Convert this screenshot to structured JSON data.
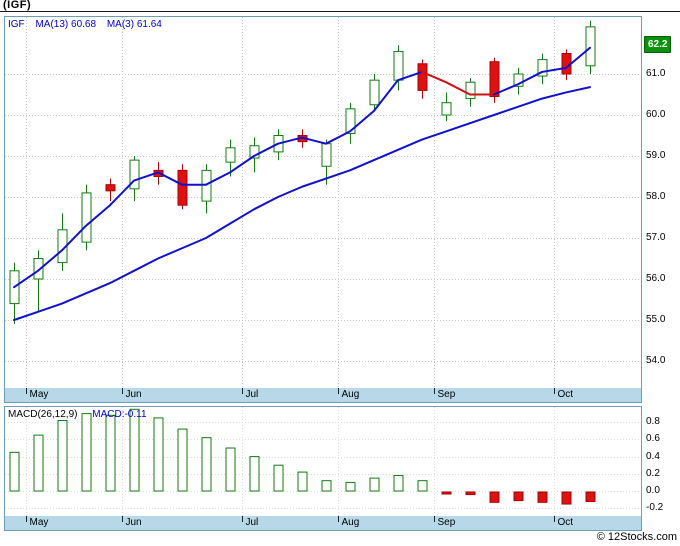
{
  "title": "(IGF)",
  "footer": {
    "copyright": "© 12Stocks.com"
  },
  "chart_data": {
    "type": "candlestick",
    "title": "(IGF)",
    "legend_position": "top-left",
    "grid": "dotted",
    "months": [
      {
        "label": "May",
        "candle_index": 1
      },
      {
        "label": "Jun",
        "candle_index": 5
      },
      {
        "label": "Jul",
        "candle_index": 10
      },
      {
        "label": "Aug",
        "candle_index": 14
      },
      {
        "label": "Sep",
        "candle_index": 18
      },
      {
        "label": "Oct",
        "candle_index": 23
      }
    ],
    "panels": [
      {
        "type": "candlestick",
        "ticker": "IGF",
        "indicators": [
          {
            "label": "MA(13)",
            "value": "60.68"
          },
          {
            "label": "MA(3)",
            "value": "61.64"
          }
        ],
        "last_price": "62.2",
        "ylim": [
          54.0,
          62.5
        ],
        "y_ticks": [
          "61.0",
          "60.0",
          "59.0",
          "58.0",
          "57.0",
          "56.0",
          "55.0",
          "54.0"
        ],
        "candles_ohlc": [
          [
            55.4,
            56.4,
            54.9,
            56.2
          ],
          [
            56.0,
            56.7,
            55.2,
            56.5
          ],
          [
            56.4,
            57.6,
            56.2,
            57.2
          ],
          [
            56.9,
            58.3,
            56.7,
            58.1
          ],
          [
            58.3,
            58.45,
            57.9,
            58.15
          ],
          [
            58.2,
            59.0,
            57.9,
            58.9
          ],
          [
            58.65,
            58.85,
            58.3,
            58.5
          ],
          [
            58.65,
            58.8,
            57.7,
            57.8
          ],
          [
            57.9,
            58.8,
            57.6,
            58.65
          ],
          [
            58.85,
            59.4,
            58.5,
            59.2
          ],
          [
            58.95,
            59.45,
            58.6,
            59.25
          ],
          [
            59.1,
            59.65,
            58.9,
            59.5
          ],
          [
            59.5,
            59.65,
            59.2,
            59.35
          ],
          [
            58.75,
            59.4,
            58.3,
            59.3
          ],
          [
            59.55,
            60.3,
            59.3,
            60.15
          ],
          [
            60.25,
            61.0,
            60.1,
            60.85
          ],
          [
            60.85,
            61.7,
            60.6,
            61.55
          ],
          [
            61.25,
            61.35,
            60.4,
            60.6
          ],
          [
            60.0,
            60.55,
            59.85,
            60.3
          ],
          [
            60.4,
            60.9,
            60.2,
            60.8
          ],
          [
            61.3,
            61.4,
            60.3,
            60.45
          ],
          [
            60.7,
            61.15,
            60.5,
            61.0
          ],
          [
            60.95,
            61.5,
            60.75,
            61.35
          ],
          [
            61.5,
            61.6,
            60.85,
            61.0
          ],
          [
            61.2,
            62.3,
            61.0,
            62.15
          ]
        ],
        "ma13": [
          55.0,
          55.2,
          55.4,
          55.65,
          55.9,
          56.2,
          56.5,
          56.75,
          57.0,
          57.35,
          57.7,
          58.0,
          58.25,
          58.45,
          58.65,
          58.9,
          59.15,
          59.4,
          59.6,
          59.8,
          60.0,
          60.2,
          60.4,
          60.55,
          60.68
        ],
        "ma3": [
          55.8,
          56.2,
          56.7,
          57.3,
          57.8,
          58.4,
          58.6,
          58.3,
          58.3,
          58.6,
          59.0,
          59.3,
          59.45,
          59.3,
          59.6,
          60.1,
          60.85,
          61.05,
          60.8,
          60.5,
          60.5,
          60.75,
          61.05,
          61.15,
          61.64
        ],
        "ma3_red_segment": [
          17,
          20
        ]
      },
      {
        "type": "bar",
        "label": "MACD(26,12,9)",
        "value_label": "MACD:-0.11",
        "ylim": [
          -0.28,
          1.0
        ],
        "y_ticks": [
          "0.8",
          "0.6",
          "0.4",
          "0.2",
          "0.0",
          "-0.2"
        ],
        "values": [
          0.45,
          0.65,
          0.82,
          0.9,
          0.88,
          0.95,
          0.85,
          0.72,
          0.62,
          0.5,
          0.4,
          0.3,
          0.22,
          0.12,
          0.1,
          0.15,
          0.18,
          0.12,
          -0.02,
          -0.03,
          -0.12,
          -0.1,
          -0.12,
          -0.14,
          -0.11
        ]
      }
    ],
    "colors": {
      "up": "#117a11",
      "down": "#dd1111",
      "down_border": "#aa0000",
      "ma": "#1111cc",
      "ma_alert": "#cc1111",
      "grid": "#c8c8c8",
      "grid_light": "#dddddd",
      "frame": "#6f9cb5",
      "axis_band": "#b7d8e8",
      "badge_bg": "#0a930a",
      "badge_text": "#ffffff",
      "header_blue": "#0000cc",
      "ticker_blue": "#000099"
    }
  }
}
